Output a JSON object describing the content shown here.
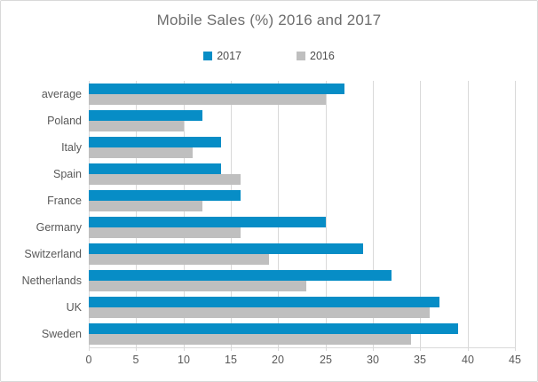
{
  "chart_data": {
    "type": "bar",
    "orientation": "horizontal",
    "title": "Mobile Sales (%) 2016 and 2017",
    "categories": [
      "average",
      "Poland",
      "Italy",
      "Spain",
      "France",
      "Germany",
      "Switzerland",
      "Netherlands",
      "UK",
      "Sweden"
    ],
    "series": [
      {
        "name": "2017",
        "color": "#078dc6",
        "values": [
          27,
          12,
          14,
          14,
          16,
          25,
          29,
          32,
          37,
          39
        ]
      },
      {
        "name": "2016",
        "color": "#bfbfbf",
        "values": [
          25,
          10,
          11,
          16,
          12,
          16,
          19,
          23,
          36,
          34
        ]
      }
    ],
    "xlabel": "",
    "ylabel": "",
    "xlim": [
      0,
      45
    ],
    "xticks": [
      0,
      5,
      10,
      15,
      20,
      25,
      30,
      35,
      40,
      45
    ],
    "grid": true,
    "legend_position": "top-center",
    "category_order": "top-to-bottom"
  },
  "colors": {
    "series_2017": "#078dc6",
    "series_2016": "#bfbfbf",
    "gridline": "#d9d9d9",
    "title_text": "#6d6d6d",
    "axis_text": "#595959",
    "chart_border": "#d9d9d9"
  }
}
